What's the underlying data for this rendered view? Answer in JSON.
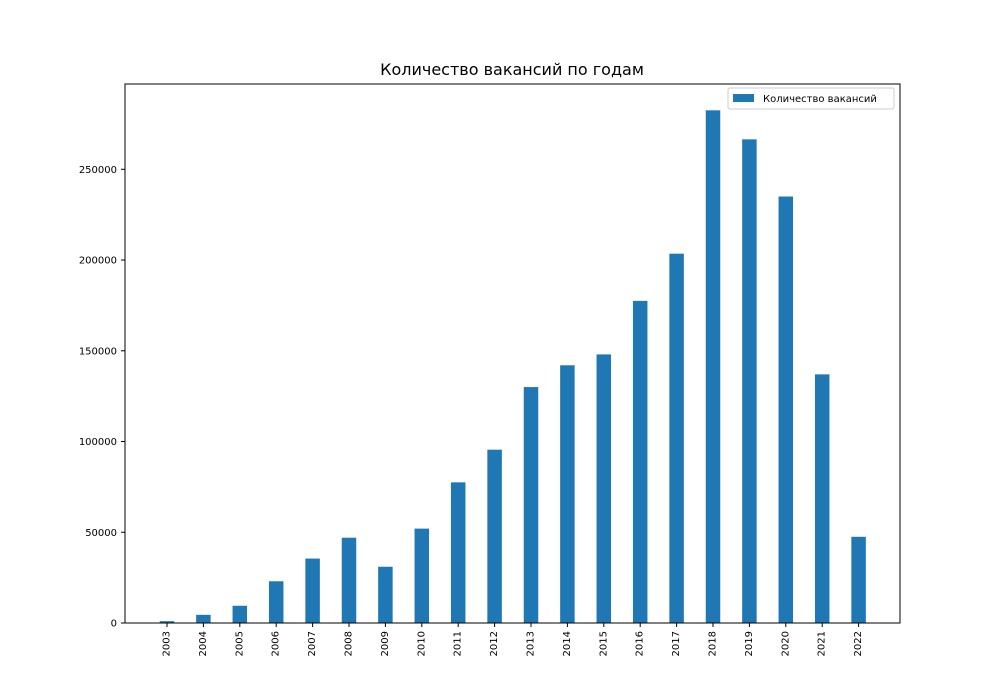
{
  "chart_data": {
    "type": "bar",
    "title": "Количество вакансий по годам",
    "xlabel": "",
    "ylabel": "",
    "categories": [
      "2003",
      "2004",
      "2005",
      "2006",
      "2007",
      "2008",
      "2009",
      "2010",
      "2011",
      "2012",
      "2013",
      "2014",
      "2015",
      "2016",
      "2017",
      "2018",
      "2019",
      "2020",
      "2021",
      "2022"
    ],
    "series": [
      {
        "name": "Количество вакансий",
        "color": "#1f77b4",
        "values": [
          1000,
          4500,
          9500,
          23000,
          35500,
          47000,
          31000,
          52000,
          77500,
          95500,
          130000,
          142000,
          148000,
          177500,
          203500,
          282500,
          266500,
          235000,
          137000,
          47500
        ]
      }
    ],
    "ylim": [
      0,
      297000
    ],
    "yticks": [
      0,
      50000,
      100000,
      150000,
      200000,
      250000
    ],
    "grid": false,
    "legend_position": "top-right"
  }
}
